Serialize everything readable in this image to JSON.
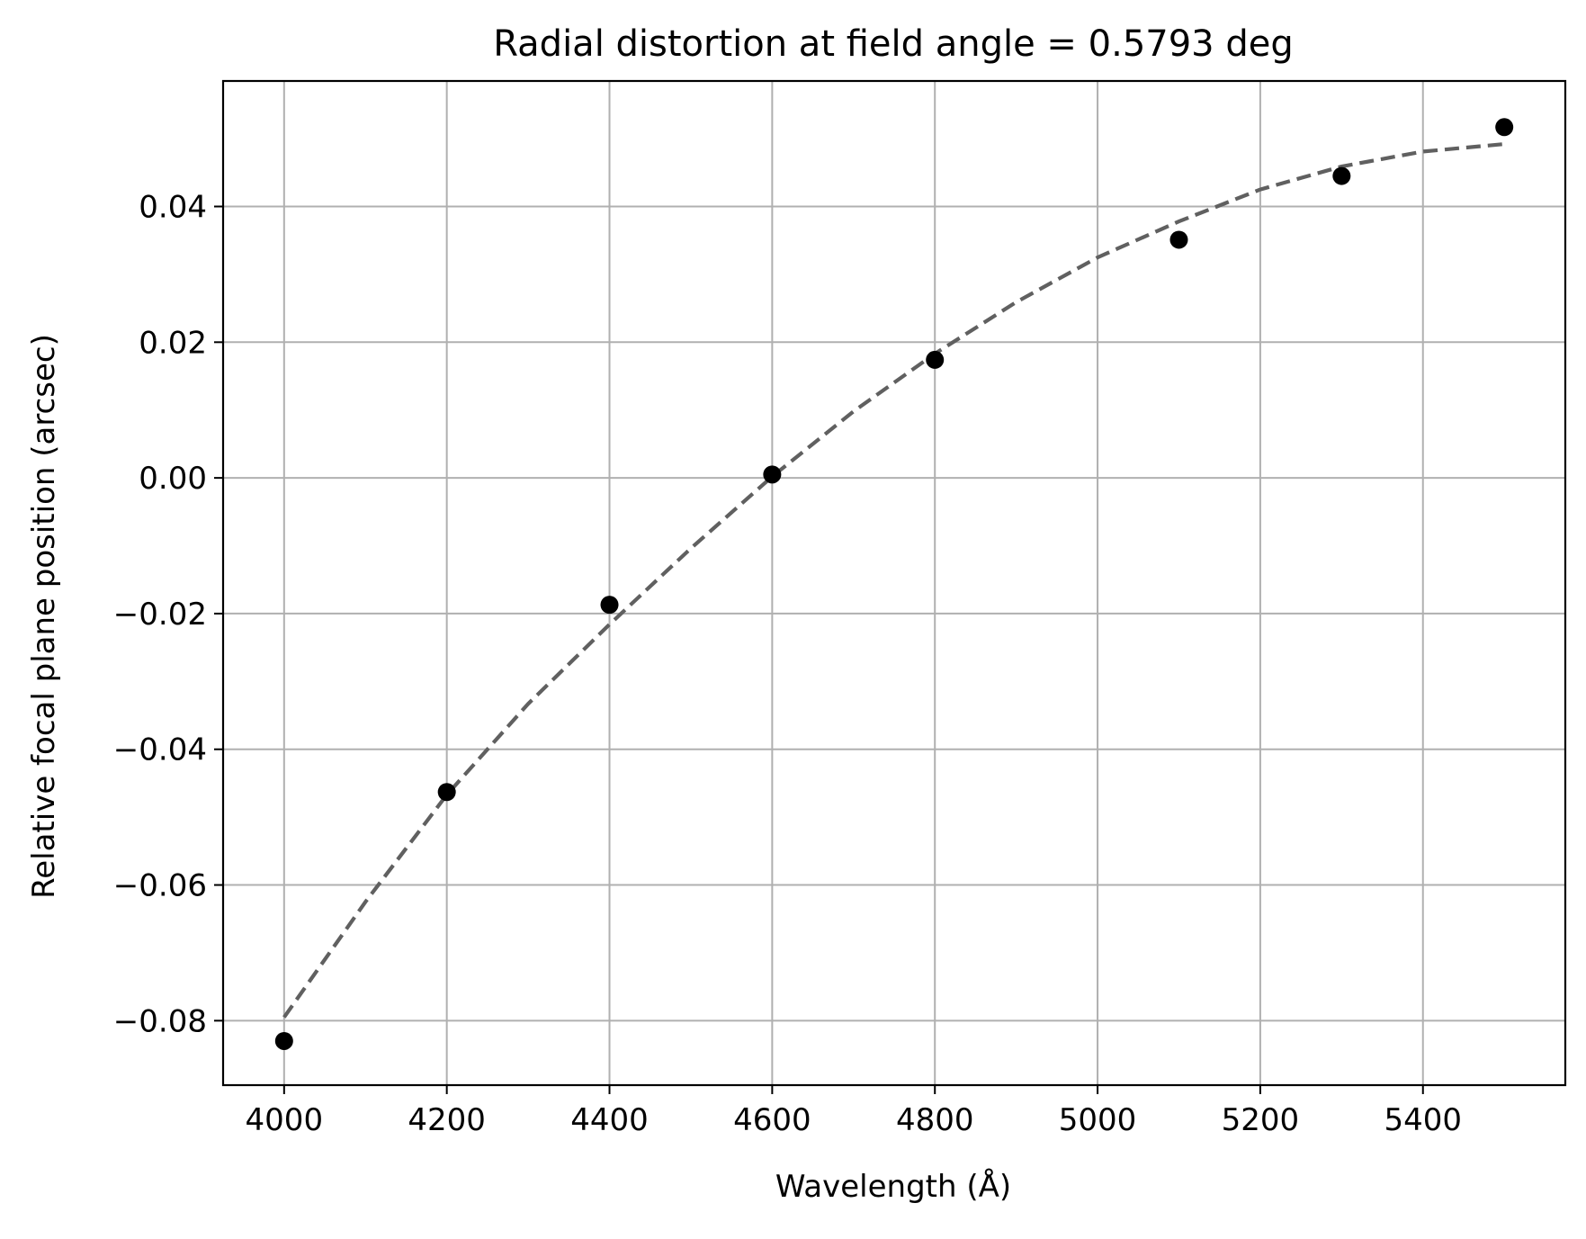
{
  "chart_data": {
    "type": "scatter",
    "title": "Radial distortion at field angle = 0.5793 deg",
    "xlabel": "Wavelength (Å)",
    "ylabel": "Relative focal plane position (arcsec)",
    "xlim": [
      3925,
      5575
    ],
    "ylim": [
      -0.0895,
      0.0585
    ],
    "x_ticks": [
      4000,
      4200,
      4400,
      4600,
      4800,
      5000,
      5200,
      5400
    ],
    "x_tick_labels": [
      "4000",
      "4200",
      "4400",
      "4600",
      "4800",
      "5000",
      "5200",
      "5400"
    ],
    "y_ticks": [
      -0.08,
      -0.06,
      -0.04,
      -0.02,
      0.0,
      0.02,
      0.04
    ],
    "y_tick_labels": [
      "−0.08",
      "−0.06",
      "−0.04",
      "−0.02",
      "0.00",
      "0.02",
      "0.04"
    ],
    "grid": true,
    "series": [
      {
        "kind": "points",
        "color": "#000000",
        "x": [
          4000,
          4200,
          4400,
          4600,
          4800,
          5100,
          5300,
          5500
        ],
        "y": [
          -0.083,
          -0.0463,
          -0.0187,
          0.0005,
          0.0174,
          0.0351,
          0.0445,
          0.0517
        ]
      },
      {
        "kind": "fit-curve",
        "style": "dashed",
        "color": "#606060",
        "x": [
          4000,
          4100,
          4200,
          4300,
          4400,
          4500,
          4600,
          4700,
          4800,
          4900,
          5000,
          5100,
          5200,
          5300,
          5400,
          5500
        ],
        "y": [
          -0.0795,
          -0.0625,
          -0.0467,
          -0.0333,
          -0.0216,
          -0.0104,
          0.0002,
          0.0098,
          0.0183,
          0.0259,
          0.0325,
          0.0378,
          0.0425,
          0.0459,
          0.0481,
          0.0492
        ]
      }
    ]
  }
}
